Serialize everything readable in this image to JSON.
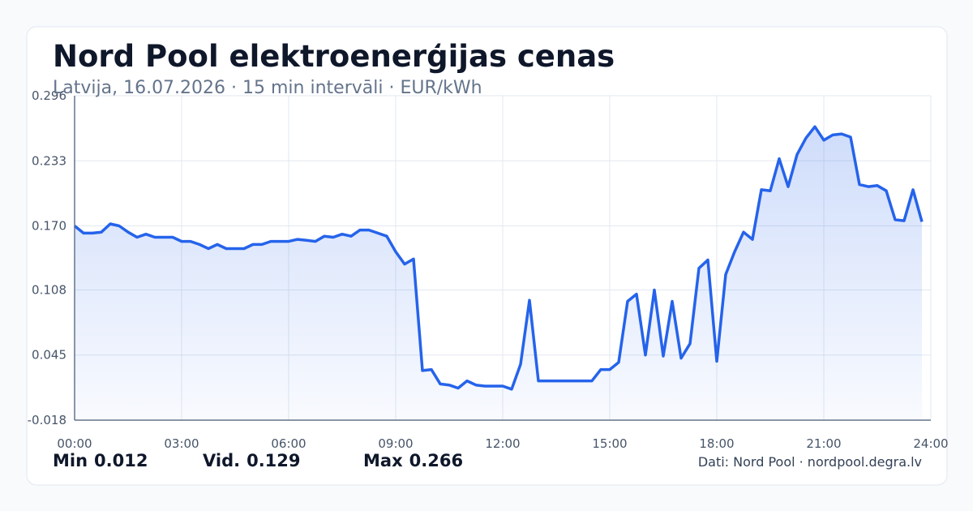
{
  "chart_data": {
    "type": "line",
    "title": "Nord Pool elektroenerģijas cenas",
    "subtitle": "Latvija, 16.07.2026 · 15 min intervāli · EUR/kWh",
    "x": [
      0,
      0.25,
      0.5,
      0.75,
      1,
      1.25,
      1.5,
      1.75,
      2,
      2.25,
      2.5,
      2.75,
      3,
      3.25,
      3.5,
      3.75,
      4,
      4.25,
      4.5,
      4.75,
      5,
      5.25,
      5.5,
      5.75,
      6,
      6.25,
      6.5,
      6.75,
      7,
      7.25,
      7.5,
      7.75,
      8,
      8.25,
      8.5,
      8.75,
      9,
      9.25,
      9.5,
      9.75,
      10,
      10.25,
      10.5,
      10.75,
      11,
      11.25,
      11.5,
      11.75,
      12,
      12.25,
      12.5,
      12.75,
      13,
      13.25,
      13.5,
      13.75,
      14,
      14.25,
      14.5,
      14.75,
      15,
      15.25,
      15.5,
      15.75,
      16,
      16.25,
      16.5,
      16.75,
      17,
      17.25,
      17.5,
      17.75,
      18,
      18.25,
      18.5,
      18.75,
      19,
      19.25,
      19.5,
      19.75,
      20,
      20.25,
      20.5,
      20.75,
      21,
      21.25,
      21.5,
      21.75,
      22,
      22.25,
      22.5,
      22.75,
      23,
      23.25,
      23.5,
      23.75
    ],
    "series": [
      {
        "color": "#2563eb",
        "values": [
          0.17,
          0.163,
          0.163,
          0.164,
          0.172,
          0.17,
          0.164,
          0.159,
          0.162,
          0.159,
          0.159,
          0.159,
          0.155,
          0.155,
          0.152,
          0.148,
          0.152,
          0.148,
          0.148,
          0.148,
          0.152,
          0.152,
          0.155,
          0.155,
          0.155,
          0.157,
          0.156,
          0.155,
          0.16,
          0.159,
          0.162,
          0.16,
          0.166,
          0.166,
          0.163,
          0.16,
          0.145,
          0.133,
          0.138,
          0.03,
          0.031,
          0.017,
          0.016,
          0.013,
          0.02,
          0.016,
          0.015,
          0.015,
          0.015,
          0.012,
          0.036,
          0.098,
          0.02,
          0.02,
          0.02,
          0.02,
          0.02,
          0.02,
          0.02,
          0.031,
          0.031,
          0.038,
          0.097,
          0.104,
          0.045,
          0.108,
          0.044,
          0.097,
          0.042,
          0.056,
          0.129,
          0.137,
          0.039,
          0.123,
          0.145,
          0.164,
          0.157,
          0.205,
          0.204,
          0.235,
          0.208,
          0.239,
          0.255,
          0.266,
          0.253,
          0.258,
          0.259,
          0.256,
          0.21,
          0.208,
          0.209,
          0.204,
          0.176,
          0.175,
          0.205,
          0.174
        ]
      }
    ],
    "xlim": [
      0,
      24
    ],
    "xticks": [
      {
        "value": 0,
        "label": "00:00"
      },
      {
        "value": 3,
        "label": "03:00"
      },
      {
        "value": 6,
        "label": "06:00"
      },
      {
        "value": 9,
        "label": "09:00"
      },
      {
        "value": 12,
        "label": "12:00"
      },
      {
        "value": 15,
        "label": "15:00"
      },
      {
        "value": 18,
        "label": "18:00"
      },
      {
        "value": 21,
        "label": "21:00"
      },
      {
        "value": 24,
        "label": "24:00"
      }
    ],
    "ylim": [
      -0.018,
      0.296
    ],
    "yticks": [
      -0.018,
      0.045,
      0.108,
      {
        "value": 0.17,
        "label": "0.170"
      },
      0.233,
      0.296
    ],
    "grid": true,
    "stats": [
      {
        "label": "Min",
        "value": 0.012
      },
      {
        "label": "Vid.",
        "value": 0.129
      },
      {
        "label": "Max",
        "value": 0.266
      }
    ],
    "source": "Dati: Nord Pool · nordpool.degra.lv"
  }
}
